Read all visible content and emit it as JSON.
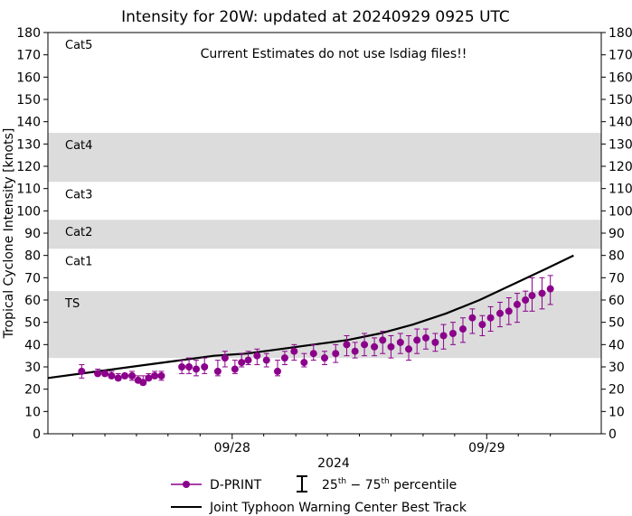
{
  "chart_data": {
    "type": "scatter",
    "title": "Intensity for 20W: updated at 20240929 0925 UTC",
    "annotation": "Current Estimates do not use lsdiag files!!",
    "ylabel": "Tropical Cyclone Intensity [knots]",
    "xlabel": "2024",
    "ylim": [
      0,
      180
    ],
    "yticks": [
      0,
      10,
      20,
      30,
      40,
      50,
      60,
      70,
      80,
      90,
      100,
      110,
      120,
      130,
      140,
      150,
      160,
      170,
      180
    ],
    "xlim": [
      0,
      1
    ],
    "xtick_labels": [
      {
        "label": "09/28",
        "x": 0.333
      },
      {
        "label": "09/29",
        "x": 0.793
      }
    ],
    "minor_xticks": [
      0.045,
      0.103,
      0.16,
      0.217,
      0.275,
      0.39,
      0.448,
      0.505,
      0.563,
      0.62,
      0.678,
      0.735,
      0.85,
      0.908
    ],
    "category_bands": [
      {
        "label": "TS",
        "min": 34,
        "max": 64,
        "shaded": true
      },
      {
        "label": "Cat1",
        "min": 64,
        "max": 83,
        "shaded": false
      },
      {
        "label": "Cat2",
        "min": 83,
        "max": 96,
        "shaded": true
      },
      {
        "label": "Cat3",
        "min": 96,
        "max": 113,
        "shaded": false
      },
      {
        "label": "Cat4",
        "min": 113,
        "max": 135,
        "shaded": true
      },
      {
        "label": "Cat5",
        "min": 135,
        "max": 180,
        "shaded": false
      }
    ],
    "series": [
      {
        "name": "D-PRINT",
        "kind": "points-with-errorbars",
        "color": "#8b008b",
        "points": [
          {
            "x": 0.061,
            "y": 28,
            "lo": 25,
            "hi": 31
          },
          {
            "x": 0.09,
            "y": 27,
            "lo": 26,
            "hi": 29
          },
          {
            "x": 0.103,
            "y": 27,
            "lo": 26,
            "hi": 28
          },
          {
            "x": 0.115,
            "y": 26,
            "lo": 25,
            "hi": 28
          },
          {
            "x": 0.127,
            "y": 25,
            "lo": 24,
            "hi": 27
          },
          {
            "x": 0.139,
            "y": 26,
            "lo": 25,
            "hi": 27
          },
          {
            "x": 0.152,
            "y": 26,
            "lo": 24,
            "hi": 28
          },
          {
            "x": 0.163,
            "y": 24,
            "lo": 23,
            "hi": 26
          },
          {
            "x": 0.172,
            "y": 23,
            "lo": 22,
            "hi": 26
          },
          {
            "x": 0.182,
            "y": 25,
            "lo": 24,
            "hi": 27
          },
          {
            "x": 0.193,
            "y": 26,
            "lo": 25,
            "hi": 28
          },
          {
            "x": 0.205,
            "y": 26,
            "lo": 24,
            "hi": 28
          },
          {
            "x": 0.242,
            "y": 30,
            "lo": 27,
            "hi": 33
          },
          {
            "x": 0.255,
            "y": 30,
            "lo": 27,
            "hi": 34
          },
          {
            "x": 0.268,
            "y": 29,
            "lo": 26,
            "hi": 33
          },
          {
            "x": 0.283,
            "y": 30,
            "lo": 27,
            "hi": 34
          },
          {
            "x": 0.307,
            "y": 28,
            "lo": 26,
            "hi": 33
          },
          {
            "x": 0.32,
            "y": 34,
            "lo": 30,
            "hi": 37
          },
          {
            "x": 0.338,
            "y": 29,
            "lo": 27,
            "hi": 33
          },
          {
            "x": 0.35,
            "y": 32,
            "lo": 30,
            "hi": 36
          },
          {
            "x": 0.362,
            "y": 33,
            "lo": 31,
            "hi": 37
          },
          {
            "x": 0.378,
            "y": 35,
            "lo": 31,
            "hi": 38
          },
          {
            "x": 0.395,
            "y": 33,
            "lo": 30,
            "hi": 36
          },
          {
            "x": 0.415,
            "y": 28,
            "lo": 26,
            "hi": 33
          },
          {
            "x": 0.428,
            "y": 34,
            "lo": 31,
            "hi": 37
          },
          {
            "x": 0.445,
            "y": 37,
            "lo": 33,
            "hi": 40
          },
          {
            "x": 0.463,
            "y": 32,
            "lo": 30,
            "hi": 36
          },
          {
            "x": 0.48,
            "y": 36,
            "lo": 33,
            "hi": 40
          },
          {
            "x": 0.5,
            "y": 34,
            "lo": 31,
            "hi": 37
          },
          {
            "x": 0.52,
            "y": 36,
            "lo": 32,
            "hi": 40
          },
          {
            "x": 0.54,
            "y": 40,
            "lo": 35,
            "hi": 44
          },
          {
            "x": 0.555,
            "y": 37,
            "lo": 34,
            "hi": 41
          },
          {
            "x": 0.572,
            "y": 40,
            "lo": 35,
            "hi": 45
          },
          {
            "x": 0.59,
            "y": 39,
            "lo": 35,
            "hi": 43
          },
          {
            "x": 0.605,
            "y": 42,
            "lo": 36,
            "hi": 46
          },
          {
            "x": 0.62,
            "y": 39,
            "lo": 34,
            "hi": 44
          },
          {
            "x": 0.637,
            "y": 41,
            "lo": 36,
            "hi": 45
          },
          {
            "x": 0.652,
            "y": 38,
            "lo": 33,
            "hi": 44
          },
          {
            "x": 0.667,
            "y": 42,
            "lo": 36,
            "hi": 47
          },
          {
            "x": 0.683,
            "y": 43,
            "lo": 38,
            "hi": 47
          },
          {
            "x": 0.7,
            "y": 41,
            "lo": 37,
            "hi": 45
          },
          {
            "x": 0.715,
            "y": 44,
            "lo": 38,
            "hi": 49
          },
          {
            "x": 0.732,
            "y": 45,
            "lo": 40,
            "hi": 50
          },
          {
            "x": 0.75,
            "y": 47,
            "lo": 41,
            "hi": 52
          },
          {
            "x": 0.767,
            "y": 52,
            "lo": 45,
            "hi": 56
          },
          {
            "x": 0.785,
            "y": 49,
            "lo": 44,
            "hi": 53
          },
          {
            "x": 0.8,
            "y": 52,
            "lo": 46,
            "hi": 57
          },
          {
            "x": 0.817,
            "y": 54,
            "lo": 48,
            "hi": 59
          },
          {
            "x": 0.833,
            "y": 55,
            "lo": 49,
            "hi": 61
          },
          {
            "x": 0.848,
            "y": 58,
            "lo": 50,
            "hi": 63
          },
          {
            "x": 0.863,
            "y": 60,
            "lo": 55,
            "hi": 64
          },
          {
            "x": 0.875,
            "y": 62,
            "lo": 55,
            "hi": 70
          },
          {
            "x": 0.893,
            "y": 63,
            "lo": 56,
            "hi": 70
          },
          {
            "x": 0.908,
            "y": 65,
            "lo": 58,
            "hi": 71
          }
        ]
      },
      {
        "name": "Joint Typhoon Warning Center Best Track",
        "kind": "line",
        "color": "#000000",
        "x": [
          0.0,
          0.06,
          0.12,
          0.18,
          0.24,
          0.3,
          0.36,
          0.42,
          0.48,
          0.54,
          0.6,
          0.66,
          0.72,
          0.78,
          0.84,
          0.9,
          0.95
        ],
        "y": [
          25,
          27,
          29,
          31,
          33,
          35,
          36,
          38,
          40,
          42,
          45,
          49,
          54,
          60,
          67,
          74,
          80
        ]
      }
    ],
    "legend": {
      "placement": "bottom",
      "entries": [
        {
          "label": "D-PRINT",
          "marker": "circle-line"
        },
        {
          "label": "25th − 75th percentile",
          "marker": "error-bar",
          "base": "25",
          "sup1": "th",
          "mid": " − 75",
          "sup2": "th",
          "tail": " percentile"
        },
        {
          "label": "Joint Typhoon Warning Center Best Track",
          "marker": "line"
        }
      ]
    }
  }
}
